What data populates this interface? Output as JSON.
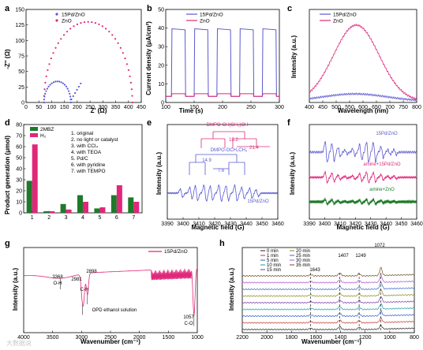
{
  "colors": {
    "blue": "#5a5ad2",
    "pink": "#e0287a",
    "green": "#1e7a2a",
    "magenta_ink": "#d81b78"
  },
  "panels": {
    "a": {
      "label": "a",
      "legend": [
        "15Pd/ZnO",
        "ZnO"
      ],
      "xlabel": "Z' (Ω)",
      "ylabel": "-Z'' (Ω)"
    },
    "b": {
      "label": "b",
      "legend": [
        "15Pd/ZnO",
        "ZnO"
      ],
      "xlabel": "Time (s)",
      "ylabel": "Current density (μA/cm²)"
    },
    "c": {
      "label": "c",
      "legend": [
        "15Pd/ZnO",
        "ZnO"
      ],
      "xlabel": "Wavelength (nm)",
      "ylabel": "Intensity (a.u.)"
    },
    "d": {
      "label": "d",
      "legend": [
        "2MBZ",
        "H₂"
      ],
      "xlabel": "",
      "ylabel": "Product generation (μmol)",
      "conditions": [
        "1. original",
        "2. no light or catalyst",
        "3. with CCl₄",
        "4. with TEOA",
        "5. Pd/C",
        "6. with pyridine",
        "7. with TEMPO"
      ]
    },
    "e": {
      "label": "e",
      "xlabel": "Magnetic field (G)",
      "ylabel": "Intensity (a.u.)",
      "ann1": "DMPO-CH(CH₃)OH",
      "ann2": "DMPO-OCH₂CH₃",
      "split1": "15.2",
      "split2": "21.4",
      "split3": "14.9",
      "split4": "7.6",
      "sample": "15Pd/ZnO"
    },
    "f": {
      "label": "f",
      "xlabel": "Magnetic field (G)",
      "ylabel": "Intensity (a.u.)",
      "traces": [
        "15Pd/ZnO",
        "amine+15Pd/ZnO",
        "amine+ZnO"
      ]
    },
    "g": {
      "label": "g",
      "xlabel": "Wavenumber (cm⁻¹)",
      "ylabel": "Intensity (a.u.)",
      "legend": "15Pd/ZnO",
      "note": "OPD ethanol solution",
      "peaks": [
        {
          "pos": "3368",
          "mode": "O-H"
        },
        {
          "pos": "2981",
          "mode": ""
        },
        {
          "pos": "2898",
          "mode": "C-H"
        },
        {
          "pos": "1057",
          "mode": "C-O"
        }
      ]
    },
    "h": {
      "label": "h",
      "xlabel": "Wavenumber (cm⁻¹)",
      "ylabel": "Intensity (a.u.)",
      "legend": [
        "0 min",
        "1 min",
        "5 min",
        "10 min",
        "15 min",
        "20 min",
        "25 min",
        "30 min",
        "35 min"
      ],
      "peaks": [
        "1643",
        "1407",
        "1249",
        "1072"
      ]
    }
  },
  "watermark": "大数据说",
  "chart_data": [
    {
      "type": "scatter",
      "panel": "a",
      "xlim": [
        0,
        450
      ],
      "ylim": [
        0,
        150
      ],
      "xticks": [
        "0",
        "50",
        "100",
        "150",
        "200",
        "250",
        "300",
        "350",
        "400",
        "450"
      ],
      "yticks": [
        "0",
        "25",
        "50",
        "75",
        "100",
        "125",
        "150"
      ],
      "series": [
        {
          "name": "15Pd/ZnO",
          "arc": {
            "x0": 70,
            "x1": 175,
            "peak": 34,
            "tail_end_x": 210,
            "tail_end_y": 34
          }
        },
        {
          "name": "ZnO",
          "arc": {
            "x0": 70,
            "x1": 415,
            "peak": 130
          }
        }
      ]
    },
    {
      "type": "line",
      "panel": "b",
      "xlim": [
        100,
        300
      ],
      "ylim": [
        -3,
        50
      ],
      "xticks": [
        "100",
        "150",
        "200",
        "250",
        "300"
      ],
      "yticks": [
        "0",
        "10",
        "20",
        "30",
        "40",
        "50"
      ],
      "light_on": [
        [
          110,
          135
        ],
        [
          150,
          175
        ],
        [
          190,
          215
        ],
        [
          230,
          255
        ],
        [
          270,
          295
        ]
      ],
      "series": [
        {
          "name": "15Pd/ZnO",
          "on": 39,
          "off": 0.5
        },
        {
          "name": "ZnO",
          "on": 2,
          "off": 0.5
        }
      ]
    },
    {
      "type": "line",
      "panel": "c",
      "xlim": [
        400,
        800
      ],
      "ylim": [
        0,
        50
      ],
      "xticks": [
        "400",
        "450",
        "500",
        "550",
        "600",
        "650",
        "700",
        "750",
        "800"
      ],
      "series": [
        {
          "name": "15Pd/ZnO",
          "center": 570,
          "width": 120,
          "height": 4
        },
        {
          "name": "ZnO",
          "center": 575,
          "width": 85,
          "height": 41
        }
      ]
    },
    {
      "type": "bar",
      "panel": "d",
      "categories": [
        "1",
        "2",
        "3",
        "4",
        "5",
        "6",
        "7"
      ],
      "ylim": [
        0,
        80
      ],
      "yticks": [
        "0",
        "10",
        "20",
        "30",
        "40",
        "50",
        "60",
        "70",
        "80"
      ],
      "series": [
        {
          "name": "2MBZ",
          "values": [
            29,
            1.5,
            8,
            16,
            4,
            16,
            14
          ]
        },
        {
          "name": "H₂",
          "values": [
            62,
            1.5,
            3,
            10,
            5,
            25,
            10
          ]
        }
      ]
    },
    {
      "type": "line",
      "panel": "e",
      "xlim": [
        3390,
        3460
      ],
      "xticks": [
        "3390",
        "3400",
        "3410",
        "3420",
        "3430",
        "3440",
        "3450",
        "3460"
      ]
    },
    {
      "type": "line",
      "panel": "f",
      "xlim": [
        3390,
        3460
      ],
      "xticks": [
        "3390",
        "3400",
        "3410",
        "3420",
        "3430",
        "3440",
        "3450",
        "3460"
      ]
    },
    {
      "type": "line",
      "panel": "g",
      "xlim": [
        4000,
        1000
      ],
      "xticks": [
        "4000",
        "3500",
        "3000",
        "2500",
        "2000",
        "1500",
        "1000"
      ]
    },
    {
      "type": "line",
      "panel": "h",
      "xlim": [
        2200,
        800
      ],
      "xticks": [
        "2200",
        "2000",
        "1800",
        "1600",
        "1400",
        "1200",
        "1000",
        "800"
      ],
      "peak_positions": [
        1643,
        1407,
        1249,
        1072
      ]
    }
  ]
}
